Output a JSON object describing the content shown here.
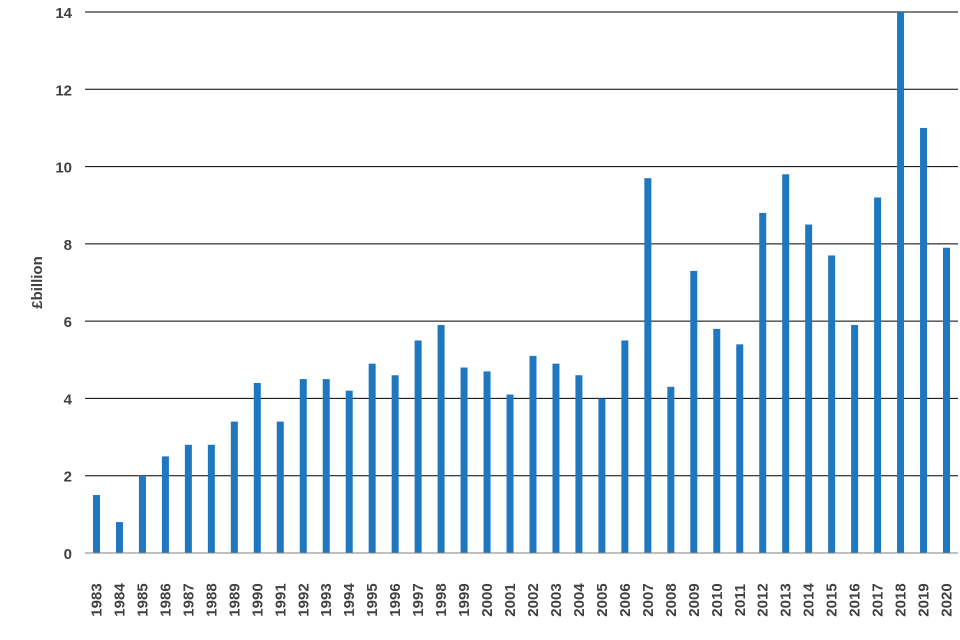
{
  "chart_data": {
    "type": "bar",
    "title": "",
    "xlabel": "",
    "ylabel": "£billion",
    "ylim": [
      0,
      14
    ],
    "yticks": [
      0,
      2,
      4,
      6,
      8,
      10,
      12,
      14
    ],
    "grid": true,
    "legend": "none",
    "bar_color": "#1f77c0",
    "categories": [
      "1983",
      "1984",
      "1985",
      "1986",
      "1987",
      "1988",
      "1989",
      "1990",
      "1991",
      "1992",
      "1993",
      "1994",
      "1995",
      "1996",
      "1997",
      "1998",
      "1999",
      "2000",
      "2001",
      "2002",
      "2003",
      "2004",
      "2005",
      "2006",
      "2007",
      "2008",
      "2009",
      "2010",
      "2011",
      "2012",
      "2013",
      "2014",
      "2015",
      "2016",
      "2017",
      "2018",
      "2019",
      "2020"
    ],
    "values": [
      1.5,
      0.8,
      2.0,
      2.5,
      2.8,
      2.8,
      3.4,
      4.4,
      3.4,
      4.5,
      4.5,
      4.2,
      4.9,
      4.6,
      5.5,
      5.9,
      4.8,
      4.7,
      4.1,
      5.1,
      4.9,
      4.6,
      4.0,
      5.5,
      9.7,
      4.3,
      7.3,
      5.8,
      5.4,
      8.8,
      9.8,
      8.5,
      7.7,
      5.9,
      9.2,
      14.0,
      11.0,
      7.9
    ]
  }
}
